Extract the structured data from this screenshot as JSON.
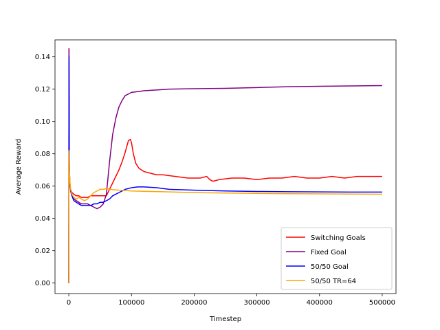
{
  "chart_data": {
    "type": "line",
    "title": "",
    "xlabel": "Timestep",
    "ylabel": "Average Reward",
    "xlim": [
      -22000,
      522000
    ],
    "ylim": [
      -0.0065,
      0.1505
    ],
    "xticks": [
      0,
      100000,
      200000,
      300000,
      400000,
      500000
    ],
    "xtick_labels": [
      "0",
      "100000",
      "200000",
      "300000",
      "400000",
      "500000"
    ],
    "yticks": [
      0.0,
      0.02,
      0.04,
      0.06,
      0.08,
      0.1,
      0.12,
      0.14
    ],
    "ytick_labels": [
      "0.00",
      "0.02",
      "0.04",
      "0.06",
      "0.08",
      "0.10",
      "0.12",
      "0.14"
    ],
    "grid": false,
    "legend_position": "lower-right",
    "series": [
      {
        "name": "Switching Goals",
        "color": "#ff0000",
        "x": [
          0,
          300,
          700,
          1200,
          2000,
          3000,
          5000,
          8000,
          12000,
          16000,
          20000,
          25000,
          30000,
          35000,
          40000,
          50000,
          60000,
          70000,
          80000,
          85000,
          90000,
          95000,
          98000,
          100000,
          103000,
          107000,
          112000,
          120000,
          130000,
          140000,
          150000,
          170000,
          190000,
          210000,
          220000,
          225000,
          230000,
          240000,
          260000,
          280000,
          300000,
          320000,
          340000,
          360000,
          380000,
          400000,
          420000,
          440000,
          460000,
          480000,
          490000,
          500000
        ],
        "y": [
          0.0,
          0.145,
          0.083,
          0.068,
          0.06,
          0.058,
          0.056,
          0.055,
          0.054,
          0.054,
          0.053,
          0.053,
          0.053,
          0.054,
          0.054,
          0.054,
          0.054,
          0.062,
          0.07,
          0.075,
          0.081,
          0.088,
          0.089,
          0.087,
          0.08,
          0.074,
          0.071,
          0.069,
          0.068,
          0.067,
          0.067,
          0.066,
          0.065,
          0.065,
          0.066,
          0.064,
          0.063,
          0.064,
          0.065,
          0.065,
          0.064,
          0.065,
          0.065,
          0.066,
          0.065,
          0.065,
          0.066,
          0.065,
          0.066,
          0.066,
          0.066,
          0.066
        ]
      },
      {
        "name": "Fixed Goal",
        "color": "#800080",
        "x": [
          0,
          300,
          700,
          1200,
          2000,
          3000,
          5000,
          8000,
          12000,
          16000,
          20000,
          25000,
          30000,
          35000,
          40000,
          45000,
          50000,
          55000,
          60000,
          65000,
          70000,
          75000,
          80000,
          85000,
          90000,
          95000,
          100000,
          110000,
          120000,
          140000,
          160000,
          200000,
          250000,
          300000,
          350000,
          400000,
          450000,
          500000
        ],
        "y": [
          0.0,
          0.145,
          0.078,
          0.067,
          0.06,
          0.057,
          0.054,
          0.052,
          0.051,
          0.05,
          0.049,
          0.049,
          0.049,
          0.048,
          0.047,
          0.046,
          0.047,
          0.049,
          0.055,
          0.075,
          0.092,
          0.102,
          0.109,
          0.113,
          0.116,
          0.117,
          0.118,
          0.1185,
          0.119,
          0.1195,
          0.12,
          0.1203,
          0.1205,
          0.121,
          0.1215,
          0.1218,
          0.122,
          0.1222
        ]
      },
      {
        "name": "50/50 Goal",
        "color": "#0000ff",
        "x": [
          0,
          300,
          700,
          1200,
          2000,
          3000,
          5000,
          8000,
          12000,
          16000,
          20000,
          25000,
          30000,
          35000,
          40000,
          45000,
          50000,
          55000,
          60000,
          65000,
          70000,
          75000,
          80000,
          90000,
          100000,
          110000,
          120000,
          140000,
          160000,
          200000,
          250000,
          300000,
          350000,
          400000,
          450000,
          500000
        ],
        "y": [
          0.0,
          0.14,
          0.077,
          0.065,
          0.06,
          0.057,
          0.054,
          0.051,
          0.05,
          0.049,
          0.048,
          0.048,
          0.048,
          0.048,
          0.049,
          0.049,
          0.05,
          0.05,
          0.051,
          0.052,
          0.054,
          0.055,
          0.056,
          0.058,
          0.059,
          0.0595,
          0.0595,
          0.059,
          0.058,
          0.0575,
          0.057,
          0.0567,
          0.0565,
          0.0564,
          0.0563,
          0.0563
        ]
      },
      {
        "name": "50/50 TR=64",
        "color": "#ffa500",
        "x": [
          0,
          300,
          700,
          1200,
          2000,
          3000,
          5000,
          8000,
          12000,
          16000,
          20000,
          25000,
          30000,
          35000,
          40000,
          45000,
          50000,
          55000,
          60000,
          65000,
          70000,
          80000,
          90000,
          100000,
          120000,
          150000,
          200000,
          250000,
          300000,
          350000,
          400000,
          450000,
          500000
        ],
        "y": [
          0.0,
          0.082,
          0.075,
          0.068,
          0.062,
          0.058,
          0.055,
          0.053,
          0.052,
          0.053,
          0.052,
          0.051,
          0.052,
          0.054,
          0.056,
          0.057,
          0.058,
          0.058,
          0.0585,
          0.058,
          0.0578,
          0.0575,
          0.0573,
          0.057,
          0.0568,
          0.0565,
          0.056,
          0.0557,
          0.0555,
          0.0553,
          0.0552,
          0.0551,
          0.055
        ]
      }
    ]
  }
}
